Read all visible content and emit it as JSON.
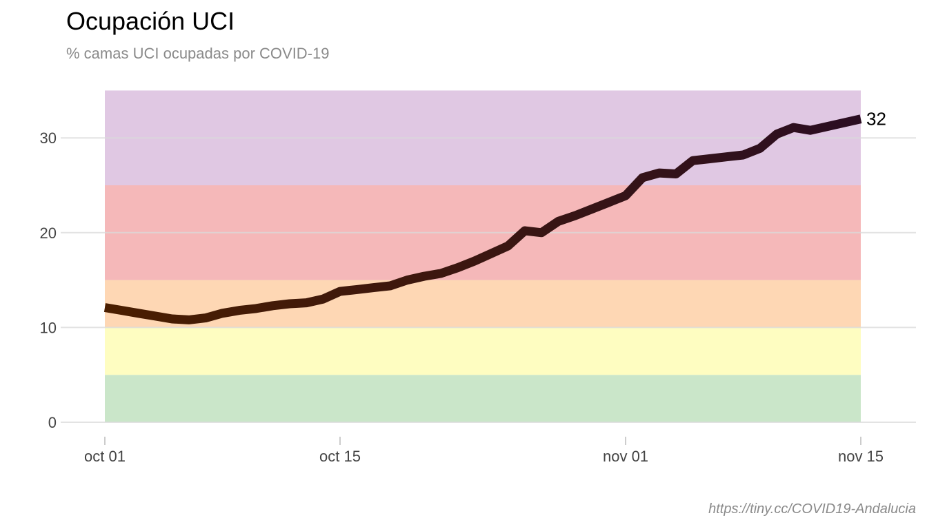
{
  "title": "Ocupación UCI",
  "subtitle": "% camas UCI ocupadas por COVID-19",
  "caption": "https://tiny.cc/COVID19-Andalucia",
  "chart_data": {
    "type": "line",
    "title": "Ocupación UCI",
    "subtitle": "% camas UCI ocupadas por COVID-19",
    "xlabel": "",
    "ylabel": "",
    "x_axis": {
      "type": "date",
      "ticks": [
        "2020-10-01",
        "2020-10-15",
        "2020-11-01",
        "2020-11-15"
      ],
      "tick_labels": [
        "oct 01",
        "oct 15",
        "nov 01",
        "nov 15"
      ],
      "range": [
        "2020-10-01",
        "2020-11-15"
      ]
    },
    "y_axis": {
      "ticks": [
        0,
        10,
        20,
        30
      ],
      "tick_labels": [
        "0",
        "10",
        "20",
        "30"
      ],
      "range": [
        0,
        35
      ]
    },
    "grid": "horizontal",
    "legend": "none",
    "bands": [
      {
        "from": 0,
        "to": 5,
        "color": "#cae6c9"
      },
      {
        "from": 5,
        "to": 10,
        "color": "#fefdc1"
      },
      {
        "from": 10,
        "to": 15,
        "color": "#fed7b4"
      },
      {
        "from": 15,
        "to": 25,
        "color": "#f5b8b9"
      },
      {
        "from": 25,
        "to": 35,
        "color": "#e0c8e3"
      }
    ],
    "line_color_start": "#4a1e00",
    "line_color_end": "#2b0e22",
    "series": [
      {
        "x": [
          "2020-10-01",
          "2020-10-02",
          "2020-10-03",
          "2020-10-04",
          "2020-10-05",
          "2020-10-06",
          "2020-10-07",
          "2020-10-08",
          "2020-10-09",
          "2020-10-10",
          "2020-10-11",
          "2020-10-12",
          "2020-10-13",
          "2020-10-14",
          "2020-10-15",
          "2020-10-16",
          "2020-10-17",
          "2020-10-18",
          "2020-10-19",
          "2020-10-20",
          "2020-10-21",
          "2020-10-22",
          "2020-10-23",
          "2020-10-24",
          "2020-10-25",
          "2020-10-26",
          "2020-10-27",
          "2020-10-28",
          "2020-10-29",
          "2020-10-30",
          "2020-10-31",
          "2020-11-01",
          "2020-11-02",
          "2020-11-03",
          "2020-11-04",
          "2020-11-05",
          "2020-11-06",
          "2020-11-07",
          "2020-11-08",
          "2020-11-09",
          "2020-11-10",
          "2020-11-11",
          "2020-11-12",
          "2020-11-13",
          "2020-11-14",
          "2020-11-15"
        ],
        "values": [
          12.1,
          11.8,
          11.5,
          11.2,
          10.9,
          10.8,
          11.0,
          11.5,
          11.8,
          12.0,
          12.3,
          12.5,
          12.6,
          13.0,
          13.8,
          14.0,
          14.2,
          14.4,
          15.0,
          15.4,
          15.7,
          16.3,
          17.0,
          17.8,
          18.6,
          20.2,
          20.0,
          21.2,
          21.8,
          22.5,
          23.2,
          23.9,
          25.8,
          26.3,
          26.2,
          27.6,
          27.8,
          28.0,
          28.2,
          28.9,
          30.4,
          31.1,
          30.8,
          31.2,
          31.6,
          32.0
        ]
      }
    ],
    "end_label": "32"
  }
}
